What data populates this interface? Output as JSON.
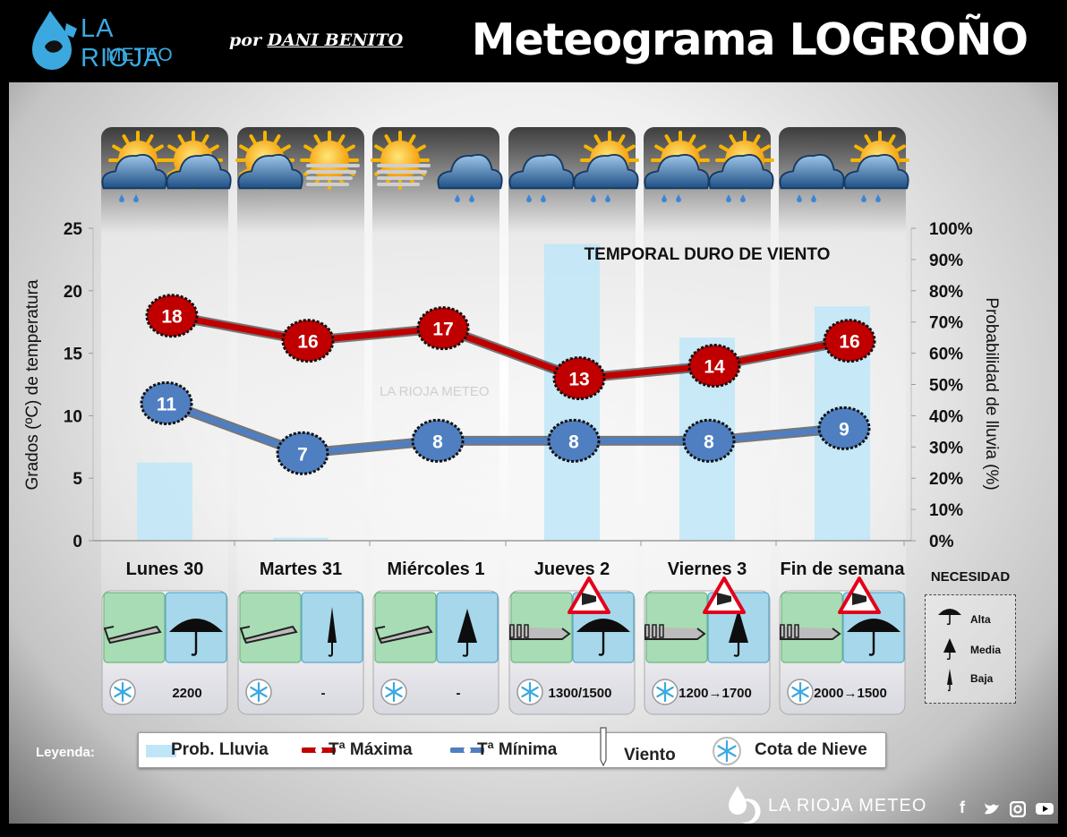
{
  "header": {
    "logo_line1": "LA RIOJA",
    "logo_line2": "METEO",
    "author_prefix": "por",
    "author_name": "DANI BENITO",
    "title": "Meteograma LOGROÑO"
  },
  "watermark": "LA RIOJA METEO",
  "chart_data": {
    "type": "line",
    "categories": [
      "Lunes 30",
      "Martes 31",
      "Miércoles 1",
      "Jueves 2",
      "Viernes 3",
      "Fin de semana"
    ],
    "ylabel": "Grados (ºC) de temperatura",
    "y2label": "Probabilidad de lluvia (%)",
    "ylim": [
      0,
      25
    ],
    "y2lim": [
      0,
      100
    ],
    "yticks": [
      "0",
      "5",
      "10",
      "15",
      "20",
      "25"
    ],
    "y2ticks": [
      "0%",
      "10%",
      "20%",
      "30%",
      "40%",
      "50%",
      "60%",
      "70%",
      "80%",
      "90%",
      "100%"
    ],
    "series": [
      {
        "name": "Tª Máxima",
        "values": [
          18,
          16,
          17,
          13,
          14,
          16
        ],
        "color": "#c00000"
      },
      {
        "name": "Tª Mínima",
        "values": [
          11,
          7,
          8,
          8,
          8,
          9
        ],
        "color": "#4f7fc0"
      }
    ],
    "bars": {
      "name": "Prob. Lluvia",
      "values": [
        25,
        1,
        0,
        95,
        65,
        75
      ],
      "color": "#bfe6f7"
    },
    "annotation": "TEMPORAL DURO DE VIENTO",
    "weather_icons": [
      [
        "sun-cloud-rain",
        "sun-cloud"
      ],
      [
        "sun-cloud",
        "sun-fog"
      ],
      [
        "sun-fog",
        "cloud-rain"
      ],
      [
        "cloud-rain",
        "sun-cloud-rain"
      ],
      [
        "sun-cloud-rain",
        "sun-cloud-rain"
      ],
      [
        "cloud-rain",
        "sun-cloud-rain"
      ]
    ],
    "wind": [
      "moderate",
      "moderate",
      "moderate",
      "strong",
      "strong",
      "strong"
    ],
    "wind_warning": [
      false,
      false,
      false,
      true,
      true,
      true
    ],
    "umbrella_need": [
      "Alta",
      "Baja",
      "Media",
      "Alta",
      "Media",
      "Alta"
    ],
    "snow_level": [
      "2200",
      "-",
      "-",
      "1300/1500",
      "1200→1700",
      "2000→1500"
    ],
    "grid": false
  },
  "necesidad": {
    "title": "NECESIDAD",
    "levels": [
      "Alta",
      "Media",
      "Baja"
    ]
  },
  "legend": {
    "title": "Leyenda:",
    "rain": "Prob. Lluvia",
    "max": "Tª Máxima",
    "min": "Tª Mínima",
    "wind": "Viento",
    "snow": "Cota de Nieve"
  },
  "footer": {
    "brand": "LA RIOJA METEO",
    "social": [
      "f",
      "t",
      "ig",
      "yt"
    ]
  },
  "colors": {
    "max": "#c00000",
    "min": "#4f7fc0",
    "rain": "#bfe6f7",
    "wind_box": "#a8dcb5",
    "umbrella_box": "#a7d7ea"
  }
}
